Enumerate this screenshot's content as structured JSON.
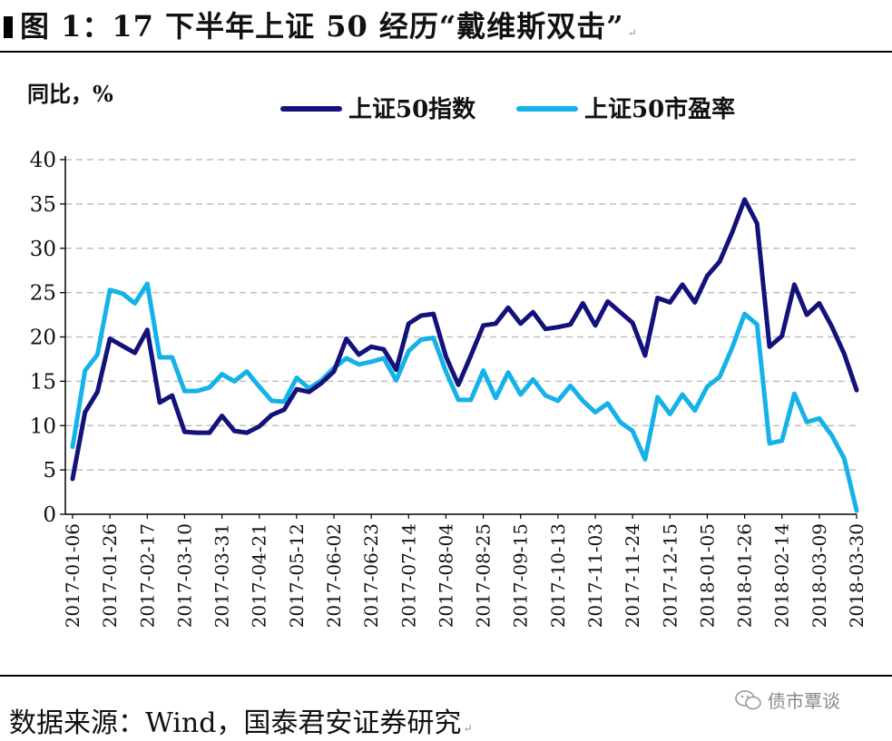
{
  "title": "图 1：17 下半年上证 50 经历“戴维斯双击”",
  "return_mark": "↵",
  "source": "数据来源：Wind，国泰君安证券研究",
  "watermark": "债市覃谈",
  "colors": {
    "index": "#12127a",
    "pe": "#14b2e8",
    "grid": "#bfbfbf"
  },
  "chart_data": {
    "type": "line",
    "ylabel": "同比，%",
    "ylim": [
      0,
      40
    ],
    "yticks": [
      0,
      5,
      10,
      15,
      20,
      25,
      30,
      35,
      40
    ],
    "grid": "horizontal-dashed",
    "legend_position": "top",
    "x_labels": [
      "2017-01-06",
      "2017-01-26",
      "2017-02-17",
      "2017-03-10",
      "2017-03-31",
      "2017-04-21",
      "2017-05-12",
      "2017-06-02",
      "2017-06-23",
      "2017-07-14",
      "2017-08-04",
      "2017-08-25",
      "2017-09-15",
      "2017-10-13",
      "2017-11-03",
      "2017-11-24",
      "2017-12-15",
      "2018-01-05",
      "2018-01-26",
      "2018-02-14",
      "2018-03-09",
      "2018-03-30"
    ],
    "series": [
      {
        "name": "上证50指数",
        "color": "#12127a",
        "values": [
          4.0,
          11.5,
          13.8,
          19.8,
          19.0,
          18.2,
          20.8,
          12.6,
          13.4,
          9.3,
          9.2,
          9.2,
          11.1,
          9.4,
          9.2,
          9.9,
          11.2,
          11.8,
          14.1,
          13.8,
          14.8,
          16.1,
          19.8,
          18.0,
          18.9,
          18.6,
          16.3,
          21.5,
          22.4,
          22.6,
          17.8,
          14.6,
          17.9,
          21.3,
          21.5,
          23.3,
          21.5,
          22.8,
          20.9,
          21.1,
          21.4,
          23.8,
          21.3,
          24.0,
          22.8,
          21.6,
          17.9,
          24.4,
          23.9,
          25.9,
          23.9,
          26.9,
          28.5,
          31.8,
          35.5,
          32.8,
          18.9,
          20.1,
          25.9,
          22.5,
          23.8,
          21.2,
          18.1,
          14.0
        ]
      },
      {
        "name": "上证50市盈率",
        "color": "#14b2e8",
        "values": [
          7.6,
          16.2,
          18.0,
          25.3,
          24.9,
          23.8,
          26.0,
          17.7,
          17.7,
          13.9,
          13.9,
          14.3,
          15.8,
          15.0,
          16.1,
          14.4,
          12.8,
          12.7,
          15.4,
          14.2,
          15.1,
          16.5,
          17.6,
          16.9,
          17.2,
          17.6,
          15.1,
          18.4,
          19.7,
          19.9,
          16.1,
          12.9,
          12.9,
          16.2,
          13.1,
          16.0,
          13.5,
          15.2,
          13.4,
          12.8,
          14.5,
          12.8,
          11.5,
          12.5,
          10.4,
          9.4,
          6.2,
          13.2,
          11.3,
          13.5,
          11.7,
          14.4,
          15.5,
          18.8,
          22.6,
          21.4,
          8.0,
          8.3,
          13.6,
          10.4,
          10.8,
          8.9,
          6.3,
          0.4
        ]
      }
    ]
  }
}
